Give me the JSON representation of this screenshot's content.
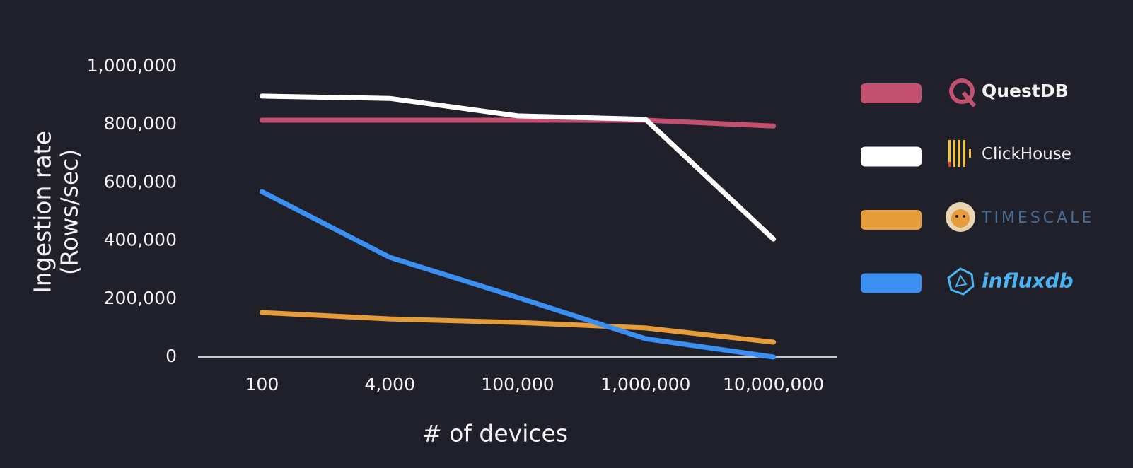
{
  "chart_data": {
    "type": "line",
    "categories": [
      "100",
      "4,000",
      "100,000",
      "1,000,000",
      "10,000,000"
    ],
    "series": [
      {
        "name": "QuestDB",
        "color": "#c4506f",
        "values": [
          815000,
          815000,
          815000,
          815000,
          795000
        ]
      },
      {
        "name": "ClickHouse",
        "color": "#ffffff",
        "values": [
          898000,
          890000,
          830000,
          818000,
          406000
        ]
      },
      {
        "name": "TIMESCALE",
        "color": "#e79c3c",
        "values": [
          153000,
          131000,
          119000,
          100000,
          51000
        ]
      },
      {
        "name": "influxdb",
        "color": "#3b8ff0",
        "values": [
          569000,
          343000,
          205000,
          63000,
          0
        ]
      }
    ],
    "ylim": [
      0,
      1000000
    ],
    "yticks": [
      0,
      {
        "value": 200000,
        "label": "200,000"
      },
      {
        "value": 400000,
        "label": "400,000"
      },
      {
        "value": 600000,
        "label": "600,000"
      },
      {
        "value": 800000,
        "label": "800,000"
      },
      {
        "value": 1000000,
        "label": "1,000,000"
      }
    ],
    "x_label": "# of devices",
    "y_label": [
      "Ingestion rate",
      "(Rows/sec)"
    ],
    "grid": false
  }
}
